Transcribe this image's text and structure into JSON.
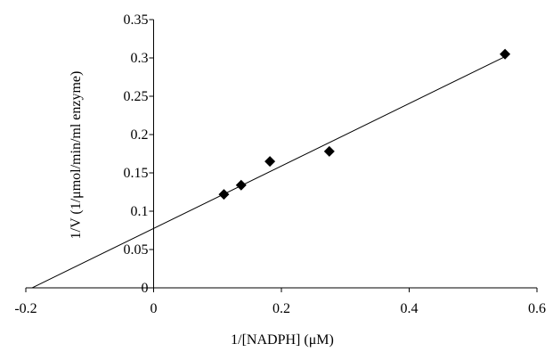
{
  "chart_data": {
    "type": "scatter",
    "xlabel": "1/[NADPH] (μM)",
    "ylabel": "1/V (1/μmol/min/ml enzyme)",
    "xlim": [
      -0.2,
      0.6
    ],
    "ylim": [
      0,
      0.35
    ],
    "x_ticks": [
      -0.2,
      0,
      0.2,
      0.4,
      0.6
    ],
    "x_tick_labels": [
      "-0.2",
      "0",
      "0.2",
      "0.4",
      "0.6"
    ],
    "y_ticks": [
      0,
      0.05,
      0.1,
      0.15,
      0.2,
      0.25,
      0.3,
      0.35
    ],
    "y_tick_labels": [
      "0",
      "0.05",
      "0.1",
      "0.15",
      "0.2",
      "0.25",
      "0.3",
      "0.35"
    ],
    "grid": false,
    "legend": "none",
    "series": [
      {
        "marker": "diamond",
        "color": "#000000",
        "points": [
          {
            "x": 0.11,
            "y": 0.122
          },
          {
            "x": 0.137,
            "y": 0.134
          },
          {
            "x": 0.182,
            "y": 0.165
          },
          {
            "x": 0.275,
            "y": 0.178
          },
          {
            "x": 0.55,
            "y": 0.305
          }
        ]
      }
    ],
    "trendline": {
      "type": "linear",
      "slope": 0.4075,
      "intercept": 0.0775,
      "x_start": -0.19,
      "x_end": 0.55
    }
  }
}
